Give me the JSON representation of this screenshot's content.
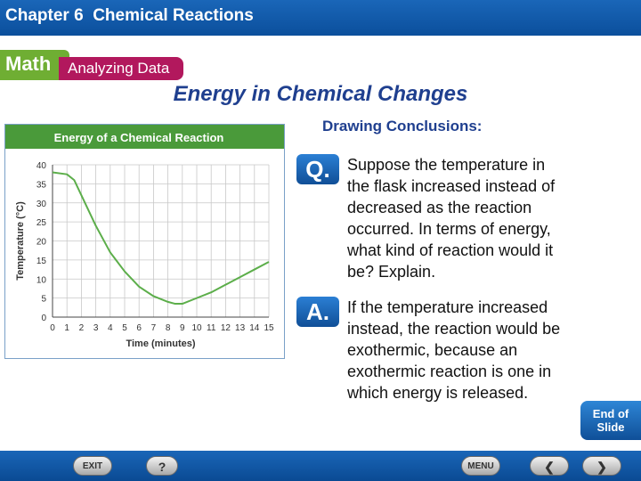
{
  "header": {
    "chapter": "Chapter 6",
    "chapter_title": "Chemical Reactions"
  },
  "badges": {
    "math": "Math",
    "analyzing": "Analyzing Data"
  },
  "slide": {
    "title": "Energy in Chemical Changes",
    "subtitle": "Drawing Conclusions:"
  },
  "question": {
    "label": "Q.",
    "lines": [
      "Suppose the temperature in",
      "the flask increased instead of",
      "decreased as the reaction",
      "occurred. In terms of energy,",
      "what kind of reaction would it",
      "be? Explain."
    ]
  },
  "answer": {
    "label": "A.",
    "lines": [
      "If the temperature increased",
      "instead, the reaction would be",
      "exothermic, because an",
      "exothermic reaction is one in",
      "which energy is released."
    ]
  },
  "nav": {
    "end_line1": "End of",
    "end_line2": "Slide",
    "exit": "EXIT",
    "help": "?",
    "menu": "MENU"
  },
  "colors": {
    "header_blue": "#0b4f9c",
    "math_green": "#6fae33",
    "analyzing_magenta": "#b2185d",
    "curve_green": "#5cae4a",
    "chart_header_green": "#4a9a3a"
  },
  "chart_data": {
    "type": "line",
    "title": "Energy of a Chemical Reaction",
    "xlabel": "Time (minutes)",
    "ylabel": "Temperature (°C)",
    "x_ticks": [
      "0",
      "1",
      "2",
      "3",
      "4",
      "5",
      "6",
      "7",
      "8",
      "9",
      "10",
      "11",
      "12",
      "13",
      "14",
      "15"
    ],
    "y_ticks": [
      "0",
      "5",
      "10",
      "15",
      "20",
      "25",
      "30",
      "35",
      "40"
    ],
    "xlim": [
      0,
      15
    ],
    "ylim": [
      0,
      40
    ],
    "grid": true,
    "series": [
      {
        "x": [
          0,
          1,
          1.5,
          2,
          3,
          4,
          5,
          6,
          7,
          8,
          8.5,
          9,
          10,
          11,
          12,
          13,
          14,
          15
        ],
        "y": [
          38,
          37.5,
          36,
          32,
          24,
          17,
          12,
          8,
          5.5,
          4,
          3.5,
          3.5,
          5,
          6.5,
          8.5,
          10.5,
          12.5,
          14.5
        ]
      }
    ]
  }
}
